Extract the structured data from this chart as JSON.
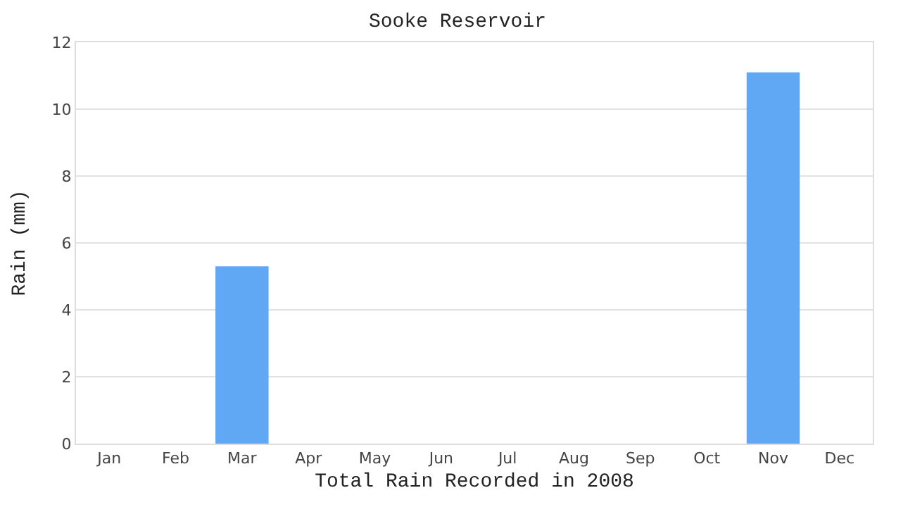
{
  "chart_data": {
    "type": "bar",
    "title": "Sooke Reservoir",
    "xlabel": "Total Rain Recorded in 2008",
    "ylabel": "Rain (mm)",
    "categories": [
      "Jan",
      "Feb",
      "Mar",
      "Apr",
      "May",
      "Jun",
      "Jul",
      "Aug",
      "Sep",
      "Oct",
      "Nov",
      "Dec"
    ],
    "series": [
      {
        "color": "#60a8f4",
        "values": [
          0,
          0,
          5.3,
          0,
          0,
          0,
          0,
          0,
          0,
          0,
          11.1,
          0
        ]
      }
    ],
    "ylim": [
      0,
      12
    ],
    "yticks": [
      0,
      2,
      4,
      6,
      8,
      10,
      12
    ],
    "grid": "y"
  }
}
